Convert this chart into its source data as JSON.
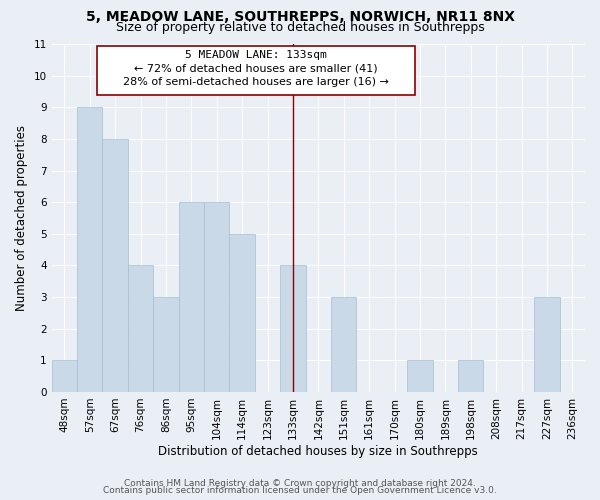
{
  "title": "5, MEADOW LANE, SOUTHREPPS, NORWICH, NR11 8NX",
  "subtitle": "Size of property relative to detached houses in Southrepps",
  "xlabel": "Distribution of detached houses by size in Southrepps",
  "ylabel": "Number of detached properties",
  "bar_labels": [
    "48sqm",
    "57sqm",
    "67sqm",
    "76sqm",
    "86sqm",
    "95sqm",
    "104sqm",
    "114sqm",
    "123sqm",
    "133sqm",
    "142sqm",
    "151sqm",
    "161sqm",
    "170sqm",
    "180sqm",
    "189sqm",
    "198sqm",
    "208sqm",
    "217sqm",
    "227sqm",
    "236sqm"
  ],
  "bar_values": [
    1,
    9,
    8,
    4,
    3,
    6,
    6,
    5,
    0,
    4,
    0,
    3,
    0,
    0,
    1,
    0,
    1,
    0,
    0,
    3,
    0
  ],
  "bar_color": "#c9d9e8",
  "bar_edge_color": "#a8bfcf",
  "vline_x": 9,
  "vline_color": "#8b0000",
  "annotation_title": "5 MEADOW LANE: 133sqm",
  "annotation_line1": "← 72% of detached houses are smaller (41)",
  "annotation_line2": "28% of semi-detached houses are larger (16) →",
  "annotation_box_color": "#8b0000",
  "annotation_box_fill": "#ffffff",
  "ylim": [
    0,
    11
  ],
  "yticks": [
    0,
    1,
    2,
    3,
    4,
    5,
    6,
    7,
    8,
    9,
    10,
    11
  ],
  "footer1": "Contains HM Land Registry data © Crown copyright and database right 2024.",
  "footer2": "Contains public sector information licensed under the Open Government Licence v3.0.",
  "bg_color": "#eaeff5",
  "plot_bg_color": "#eaeff5",
  "title_fontsize": 10,
  "subtitle_fontsize": 9,
  "axis_label_fontsize": 8.5,
  "tick_fontsize": 7.5,
  "footer_fontsize": 6.5
}
